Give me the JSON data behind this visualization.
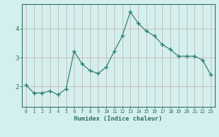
{
  "x": [
    0,
    1,
    2,
    3,
    4,
    5,
    6,
    7,
    8,
    9,
    10,
    11,
    12,
    13,
    14,
    15,
    16,
    17,
    18,
    19,
    20,
    21,
    22,
    23
  ],
  "y": [
    2.05,
    1.78,
    1.78,
    1.85,
    1.72,
    1.92,
    3.22,
    2.78,
    2.55,
    2.45,
    2.68,
    3.22,
    3.75,
    4.58,
    4.18,
    3.92,
    3.75,
    3.45,
    3.28,
    3.05,
    3.05,
    3.05,
    2.92,
    2.42
  ],
  "line_color": "#2d7f6e",
  "marker": "+",
  "marker_size": 4,
  "bg_color": "#d4f0ee",
  "grid_color": "#c0a8a8",
  "axis_color": "#2d6e60",
  "tick_label_color": "#2d6e60",
  "xlabel": "Humidex (Indice chaleur)",
  "yticks": [
    2,
    3,
    4
  ],
  "ylim": [
    1.3,
    4.85
  ],
  "xlim": [
    -0.5,
    23.5
  ],
  "xticks": [
    0,
    1,
    2,
    3,
    4,
    5,
    6,
    7,
    8,
    9,
    10,
    11,
    12,
    13,
    14,
    15,
    16,
    17,
    18,
    19,
    20,
    21,
    22,
    23
  ]
}
